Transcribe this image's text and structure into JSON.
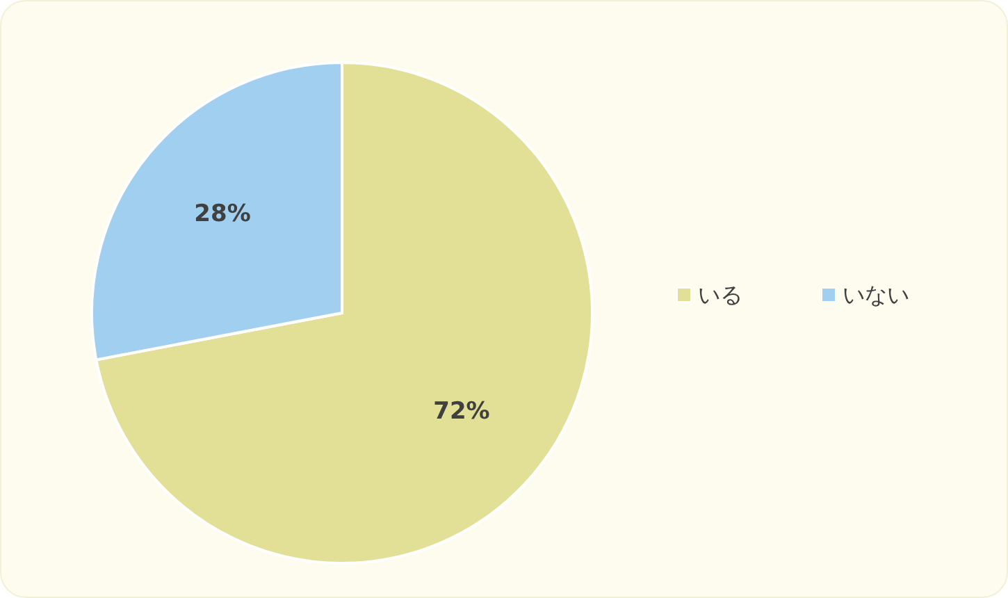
{
  "chart_data": {
    "type": "pie",
    "categories": [
      "いる",
      "いない"
    ],
    "values": [
      72,
      28
    ],
    "colors": [
      "#e2df96",
      "#a0cff0"
    ],
    "value_labels": [
      "72%",
      "28%"
    ],
    "legend": "right"
  }
}
